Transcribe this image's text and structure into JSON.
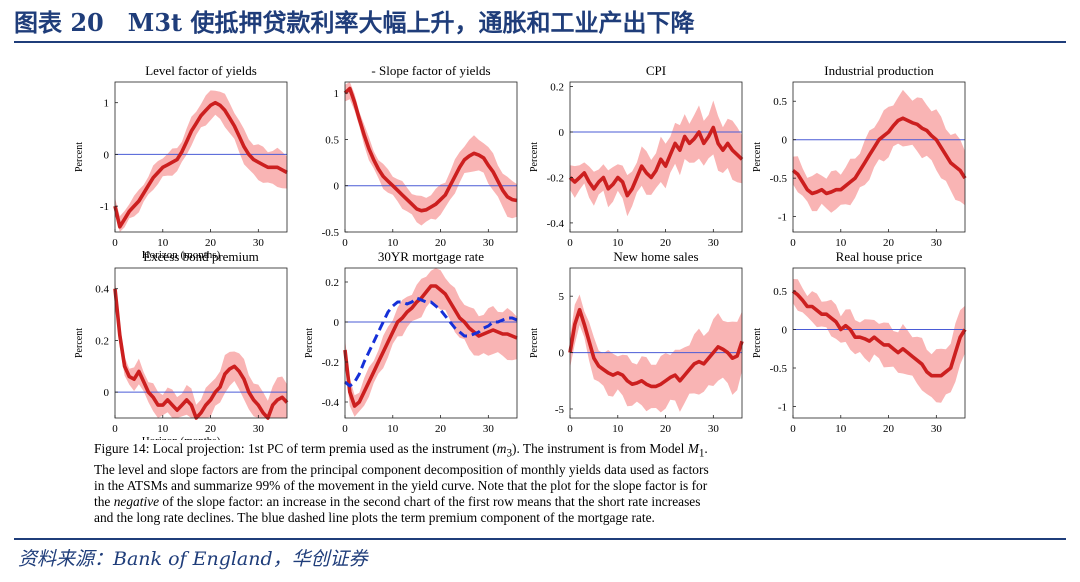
{
  "header": {
    "title": "图表 20　M3t 使抵押贷款利率大幅上升，通胀和工业产出下降"
  },
  "colors": {
    "accent": "#1f3d7a",
    "irf": "#cc1f1f",
    "band": "#f9b4b4",
    "zero": "#4a5bd6",
    "dashed": "#1630d8"
  },
  "chart_data": [
    {
      "type": "line",
      "title": "Level factor of yields",
      "ylabel": "Percent",
      "xlabel": "Horizon (months)",
      "xlim": [
        0,
        36
      ],
      "ylim": [
        -1.5,
        1.4
      ],
      "xticks": [
        0,
        10,
        20,
        30
      ],
      "yticks": [
        -1,
        0,
        1
      ],
      "ytick_labels": [
        "-1",
        "0",
        "1"
      ],
      "x": [
        0,
        1,
        2,
        3,
        4,
        5,
        6,
        7,
        8,
        9,
        10,
        11,
        12,
        13,
        14,
        15,
        16,
        17,
        18,
        19,
        20,
        21,
        22,
        23,
        24,
        25,
        26,
        27,
        28,
        29,
        30,
        31,
        32,
        33,
        34,
        35,
        36
      ],
      "series": [
        {
          "role": "irf",
          "values": [
            -1.0,
            -1.4,
            -1.25,
            -1.1,
            -1.0,
            -0.9,
            -0.75,
            -0.6,
            -0.45,
            -0.35,
            -0.25,
            -0.2,
            -0.15,
            -0.1,
            0.05,
            0.25,
            0.45,
            0.6,
            0.75,
            0.85,
            0.95,
            1.0,
            0.95,
            0.85,
            0.7,
            0.55,
            0.35,
            0.15,
            0.0,
            -0.1,
            -0.15,
            -0.2,
            -0.25,
            -0.25,
            -0.25,
            -0.3,
            -0.35
          ]
        }
      ],
      "band_width": 0.35
    },
    {
      "type": "line",
      "title": "- Slope factor of yields",
      "ylabel": "",
      "xlabel": "",
      "xlim": [
        0,
        36
      ],
      "ylim": [
        -0.5,
        1.12
      ],
      "xticks": [
        0,
        10,
        20,
        30
      ],
      "yticks": [
        -0.5,
        0,
        0.5,
        1
      ],
      "ytick_labels": [
        "-0.5",
        "0",
        "0.5",
        "1"
      ],
      "x": [
        0,
        1,
        2,
        3,
        4,
        5,
        6,
        7,
        8,
        9,
        10,
        11,
        12,
        13,
        14,
        15,
        16,
        17,
        18,
        19,
        20,
        21,
        22,
        23,
        24,
        25,
        26,
        27,
        28,
        29,
        30,
        31,
        32,
        33,
        34,
        35,
        36
      ],
      "series": [
        {
          "role": "irf",
          "values": [
            1.0,
            1.05,
            0.9,
            0.72,
            0.55,
            0.4,
            0.28,
            0.18,
            0.1,
            0.05,
            0.0,
            -0.05,
            -0.1,
            -0.15,
            -0.2,
            -0.25,
            -0.27,
            -0.26,
            -0.23,
            -0.2,
            -0.15,
            -0.1,
            0.0,
            0.1,
            0.2,
            0.28,
            0.32,
            0.35,
            0.33,
            0.3,
            0.22,
            0.15,
            0.05,
            -0.05,
            -0.12,
            -0.15,
            -0.16
          ]
        }
      ],
      "band_width": 0.2
    },
    {
      "type": "line",
      "title": "CPI",
      "ylabel": "Percent",
      "xlabel": "",
      "xlim": [
        0,
        36
      ],
      "ylim": [
        -0.44,
        0.22
      ],
      "xticks": [
        0,
        10,
        20,
        30
      ],
      "yticks": [
        -0.4,
        -0.2,
        0,
        0.2
      ],
      "ytick_labels": [
        "-0.4",
        "-0.2",
        "0",
        "0.2"
      ],
      "x": [
        0,
        1,
        2,
        3,
        4,
        5,
        6,
        7,
        8,
        9,
        10,
        11,
        12,
        13,
        14,
        15,
        16,
        17,
        18,
        19,
        20,
        21,
        22,
        23,
        24,
        25,
        26,
        27,
        28,
        29,
        30,
        31,
        32,
        33,
        34,
        35,
        36
      ],
      "series": [
        {
          "role": "irf",
          "values": [
            -0.2,
            -0.22,
            -0.2,
            -0.18,
            -0.22,
            -0.25,
            -0.22,
            -0.2,
            -0.25,
            -0.23,
            -0.2,
            -0.22,
            -0.28,
            -0.25,
            -0.2,
            -0.15,
            -0.18,
            -0.2,
            -0.17,
            -0.12,
            -0.15,
            -0.1,
            -0.05,
            -0.08,
            -0.02,
            -0.05,
            -0.03,
            0.0,
            -0.05,
            -0.02,
            0.02,
            -0.05,
            -0.08,
            -0.05,
            -0.08,
            -0.1,
            -0.12
          ]
        }
      ],
      "band_width": 0.12
    },
    {
      "type": "line",
      "title": "Industrial production",
      "ylabel": "Percent",
      "xlabel": "",
      "xlim": [
        0,
        36
      ],
      "ylim": [
        -1.2,
        0.75
      ],
      "xticks": [
        0,
        10,
        20,
        30
      ],
      "yticks": [
        -1,
        -0.5,
        0,
        0.5
      ],
      "ytick_labels": [
        "-1",
        "-0.5",
        "0",
        "0.5"
      ],
      "x": [
        0,
        1,
        2,
        3,
        4,
        5,
        6,
        7,
        8,
        9,
        10,
        11,
        12,
        13,
        14,
        15,
        16,
        17,
        18,
        19,
        20,
        21,
        22,
        23,
        24,
        25,
        26,
        27,
        28,
        29,
        30,
        31,
        32,
        33,
        34,
        35,
        36
      ],
      "series": [
        {
          "role": "irf",
          "values": [
            -0.4,
            -0.45,
            -0.55,
            -0.65,
            -0.7,
            -0.68,
            -0.65,
            -0.7,
            -0.68,
            -0.65,
            -0.65,
            -0.6,
            -0.55,
            -0.5,
            -0.4,
            -0.3,
            -0.2,
            -0.1,
            0.0,
            0.05,
            0.1,
            0.18,
            0.25,
            0.28,
            0.25,
            0.22,
            0.2,
            0.15,
            0.12,
            0.05,
            0.0,
            -0.1,
            -0.2,
            -0.3,
            -0.35,
            -0.4,
            -0.5
          ]
        }
      ],
      "band_width": 0.4
    },
    {
      "type": "line",
      "title": "Excess bond premium",
      "ylabel": "Percent",
      "xlabel": "Horizon (months)",
      "xlim": [
        0,
        36
      ],
      "ylim": [
        -0.1,
        0.48
      ],
      "xticks": [
        0,
        10,
        20,
        30
      ],
      "yticks": [
        0,
        0.2,
        0.4
      ],
      "ytick_labels": [
        "0",
        "0.2",
        "0.4"
      ],
      "x": [
        0,
        1,
        2,
        3,
        4,
        5,
        6,
        7,
        8,
        9,
        10,
        11,
        12,
        13,
        14,
        15,
        16,
        17,
        18,
        19,
        20,
        21,
        22,
        23,
        24,
        25,
        26,
        27,
        28,
        29,
        30,
        31,
        32,
        33,
        34,
        35,
        36
      ],
      "series": [
        {
          "role": "irf",
          "values": [
            0.4,
            0.22,
            0.1,
            0.06,
            0.05,
            0.08,
            0.04,
            0.0,
            -0.02,
            -0.05,
            -0.05,
            -0.03,
            -0.05,
            -0.07,
            -0.05,
            -0.03,
            -0.05,
            -0.1,
            -0.08,
            -0.05,
            -0.03,
            0.0,
            0.02,
            0.07,
            0.09,
            0.1,
            0.08,
            0.05,
            0.0,
            -0.03,
            -0.05,
            -0.08,
            -0.1,
            -0.05,
            -0.03,
            -0.02,
            -0.04
          ]
        }
      ],
      "band_width": 0.08
    },
    {
      "type": "line",
      "title": "30YR mortgage rate",
      "ylabel": "Percent",
      "xlabel": "",
      "xlim": [
        0,
        36
      ],
      "ylim": [
        -0.48,
        0.27
      ],
      "xticks": [
        0,
        10,
        20,
        30
      ],
      "yticks": [
        -0.4,
        -0.2,
        0,
        0.2
      ],
      "ytick_labels": [
        "-0.4",
        "-0.2",
        "0",
        "0.2"
      ],
      "x": [
        0,
        1,
        2,
        3,
        4,
        5,
        6,
        7,
        8,
        9,
        10,
        11,
        12,
        13,
        14,
        15,
        16,
        17,
        18,
        19,
        20,
        21,
        22,
        23,
        24,
        25,
        26,
        27,
        28,
        29,
        30,
        31,
        32,
        33,
        34,
        35,
        36
      ],
      "series": [
        {
          "role": "irf",
          "values": [
            -0.14,
            -0.35,
            -0.42,
            -0.4,
            -0.35,
            -0.3,
            -0.25,
            -0.2,
            -0.15,
            -0.1,
            -0.05,
            0.0,
            0.02,
            0.05,
            0.07,
            0.1,
            0.12,
            0.15,
            0.18,
            0.18,
            0.16,
            0.14,
            0.1,
            0.06,
            0.02,
            0.0,
            -0.03,
            -0.05,
            -0.07,
            -0.06,
            -0.05,
            -0.04,
            -0.05,
            -0.06,
            -0.06,
            -0.07,
            -0.08
          ]
        },
        {
          "role": "term-premium",
          "values": [
            -0.3,
            -0.32,
            -0.3,
            -0.26,
            -0.2,
            -0.15,
            -0.1,
            -0.05,
            0.0,
            0.05,
            0.08,
            0.1,
            0.1,
            0.09,
            0.1,
            0.12,
            0.11,
            0.1,
            0.1,
            0.08,
            0.06,
            0.03,
            0.0,
            -0.03,
            -0.05,
            -0.07,
            -0.07,
            -0.06,
            -0.05,
            -0.03,
            -0.02,
            0.0,
            0.0,
            0.01,
            0.02,
            0.02,
            0.01
          ]
        }
      ],
      "band_width": 0.12
    },
    {
      "type": "line",
      "title": "New home sales",
      "ylabel": "Percent",
      "xlabel": "",
      "xlim": [
        0,
        36
      ],
      "ylim": [
        -5.8,
        7.5
      ],
      "xticks": [
        0,
        10,
        20,
        30
      ],
      "yticks": [
        -5,
        0,
        5
      ],
      "ytick_labels": [
        "-5",
        "0",
        "5"
      ],
      "x": [
        0,
        1,
        2,
        3,
        4,
        5,
        6,
        7,
        8,
        9,
        10,
        11,
        12,
        13,
        14,
        15,
        16,
        17,
        18,
        19,
        20,
        21,
        22,
        23,
        24,
        25,
        26,
        27,
        28,
        29,
        30,
        31,
        32,
        33,
        34,
        35,
        36
      ],
      "series": [
        {
          "role": "irf",
          "values": [
            0.0,
            2.5,
            3.8,
            2.5,
            1.0,
            -0.5,
            -1.2,
            -1.5,
            -1.8,
            -2.0,
            -1.8,
            -2.0,
            -2.5,
            -2.8,
            -2.7,
            -2.5,
            -2.8,
            -3.0,
            -3.0,
            -2.8,
            -2.5,
            -2.2,
            -2.0,
            -2.5,
            -2.0,
            -1.5,
            -1.0,
            -0.8,
            -1.0,
            -0.5,
            0.0,
            0.5,
            0.3,
            0.0,
            -0.5,
            -0.3,
            1.0
          ]
        }
      ],
      "band_width": 3.0
    },
    {
      "type": "line",
      "title": "Real house price",
      "ylabel": "Percent",
      "xlabel": "",
      "xlim": [
        0,
        36
      ],
      "ylim": [
        -1.15,
        0.8
      ],
      "xticks": [
        0,
        10,
        20,
        30
      ],
      "yticks": [
        -1,
        -0.5,
        0,
        0.5
      ],
      "ytick_labels": [
        "-1",
        "-0.5",
        "0",
        "0.5"
      ],
      "x": [
        0,
        1,
        2,
        3,
        4,
        5,
        6,
        7,
        8,
        9,
        10,
        11,
        12,
        13,
        14,
        15,
        16,
        17,
        18,
        19,
        20,
        21,
        22,
        23,
        24,
        25,
        26,
        27,
        28,
        29,
        30,
        31,
        32,
        33,
        34,
        35,
        36
      ],
      "series": [
        {
          "role": "irf",
          "values": [
            0.5,
            0.45,
            0.38,
            0.3,
            0.3,
            0.25,
            0.2,
            0.2,
            0.15,
            0.1,
            0.0,
            0.05,
            0.0,
            -0.1,
            -0.1,
            -0.12,
            -0.15,
            -0.1,
            -0.15,
            -0.2,
            -0.2,
            -0.25,
            -0.3,
            -0.25,
            -0.3,
            -0.35,
            -0.4,
            -0.45,
            -0.55,
            -0.6,
            -0.6,
            -0.6,
            -0.55,
            -0.5,
            -0.3,
            -0.1,
            0.0
          ]
        }
      ],
      "band_width": 0.35
    }
  ],
  "caption": {
    "line1_a": "Figure 14:  Local projection:  1st PC of term premia used as the instrument (",
    "line1_m": "m",
    "line1_sub": "3",
    "line1_b": ").  The instrument is from Model ",
    "line1_model": "M",
    "line1_model_sub": "1",
    "line1_c": ".",
    "line2": "The level and slope factors are from the principal component decomposition of monthly yields data used as factors",
    "line3": "in the ATSMs and summarize 99% of the movement in the yield curve.  Note that the plot for the slope factor is for",
    "line4_a": "the ",
    "line4_em": "negative",
    "line4_b": " of the slope factor:  an increase in the second chart of the first row means that the short rate increases",
    "line5": "and the long rate declines.  The blue dashed line plots the term premium component of the mortgage rate."
  },
  "source": {
    "text": "资料来源：Bank of England，华创证券"
  }
}
